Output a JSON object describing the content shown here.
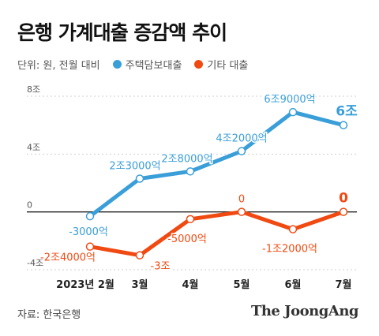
{
  "title": "은행 가계대출 증감액 추이",
  "unit_label": "단위: 원, 전월 대비",
  "source": "자료: 한국은행",
  "brand": "The JoongAng",
  "chart_data": {
    "type": "line",
    "categories": [
      "2023년 2월",
      "3월",
      "4월",
      "5월",
      "6월",
      "7월"
    ],
    "ylim": [
      -4,
      8
    ],
    "yticks": [
      8,
      4,
      0,
      -4
    ],
    "ytick_labels": [
      "8조",
      "4조",
      "0",
      "-4조"
    ],
    "series": [
      {
        "name": "주택담보대출",
        "color": "#3a9ed8",
        "values": [
          -0.3,
          2.3,
          2.8,
          4.2,
          6.9,
          6.0
        ],
        "labels": [
          "-3000억",
          "2조3000억",
          "2조8000억",
          "4조2000억",
          "6조9000억",
          "6조"
        ]
      },
      {
        "name": "기타 대출",
        "color": "#f04a12",
        "values": [
          -2.4,
          -3.0,
          -0.5,
          0.0,
          -1.2,
          0.0
        ],
        "labels": [
          "-2조4000억",
          "-3조",
          "-5000억",
          "0",
          "-1조2000억",
          "0"
        ]
      }
    ]
  }
}
